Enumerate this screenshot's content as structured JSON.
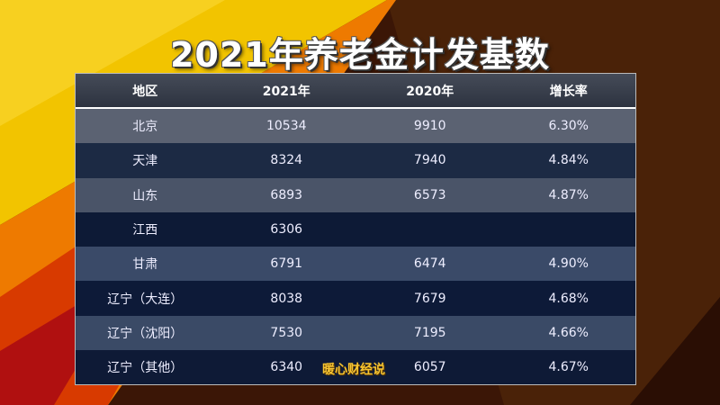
{
  "title": "2021年养老金计发基数",
  "table": {
    "headers": [
      "地区",
      "2021年",
      "2020年",
      "增长率"
    ],
    "rows": [
      [
        "北京",
        "10534",
        "9910",
        "6.30%"
      ],
      [
        "天津",
        "8324",
        "7940",
        "4.84%"
      ],
      [
        "山东",
        "6893",
        "6573",
        "4.87%"
      ],
      [
        "江西",
        "6306",
        "",
        ""
      ],
      [
        "甘肃",
        "6791",
        "6474",
        "4.90%"
      ],
      [
        "辽宁（大连）",
        "8038",
        "7679",
        "4.68%"
      ],
      [
        "辽宁（沈阳）",
        "7530",
        "7195",
        "4.66%"
      ],
      [
        "辽宁（其他）",
        "6340",
        "6057",
        "4.67%"
      ]
    ],
    "row_colors": [
      "#5b6272",
      "#1c2a44",
      "#4a5468",
      "#0d1a36",
      "#3a4a68",
      "#0d1a38",
      "#3a4a66",
      "#0e1a36"
    ]
  },
  "watermark": "暖心财经说"
}
